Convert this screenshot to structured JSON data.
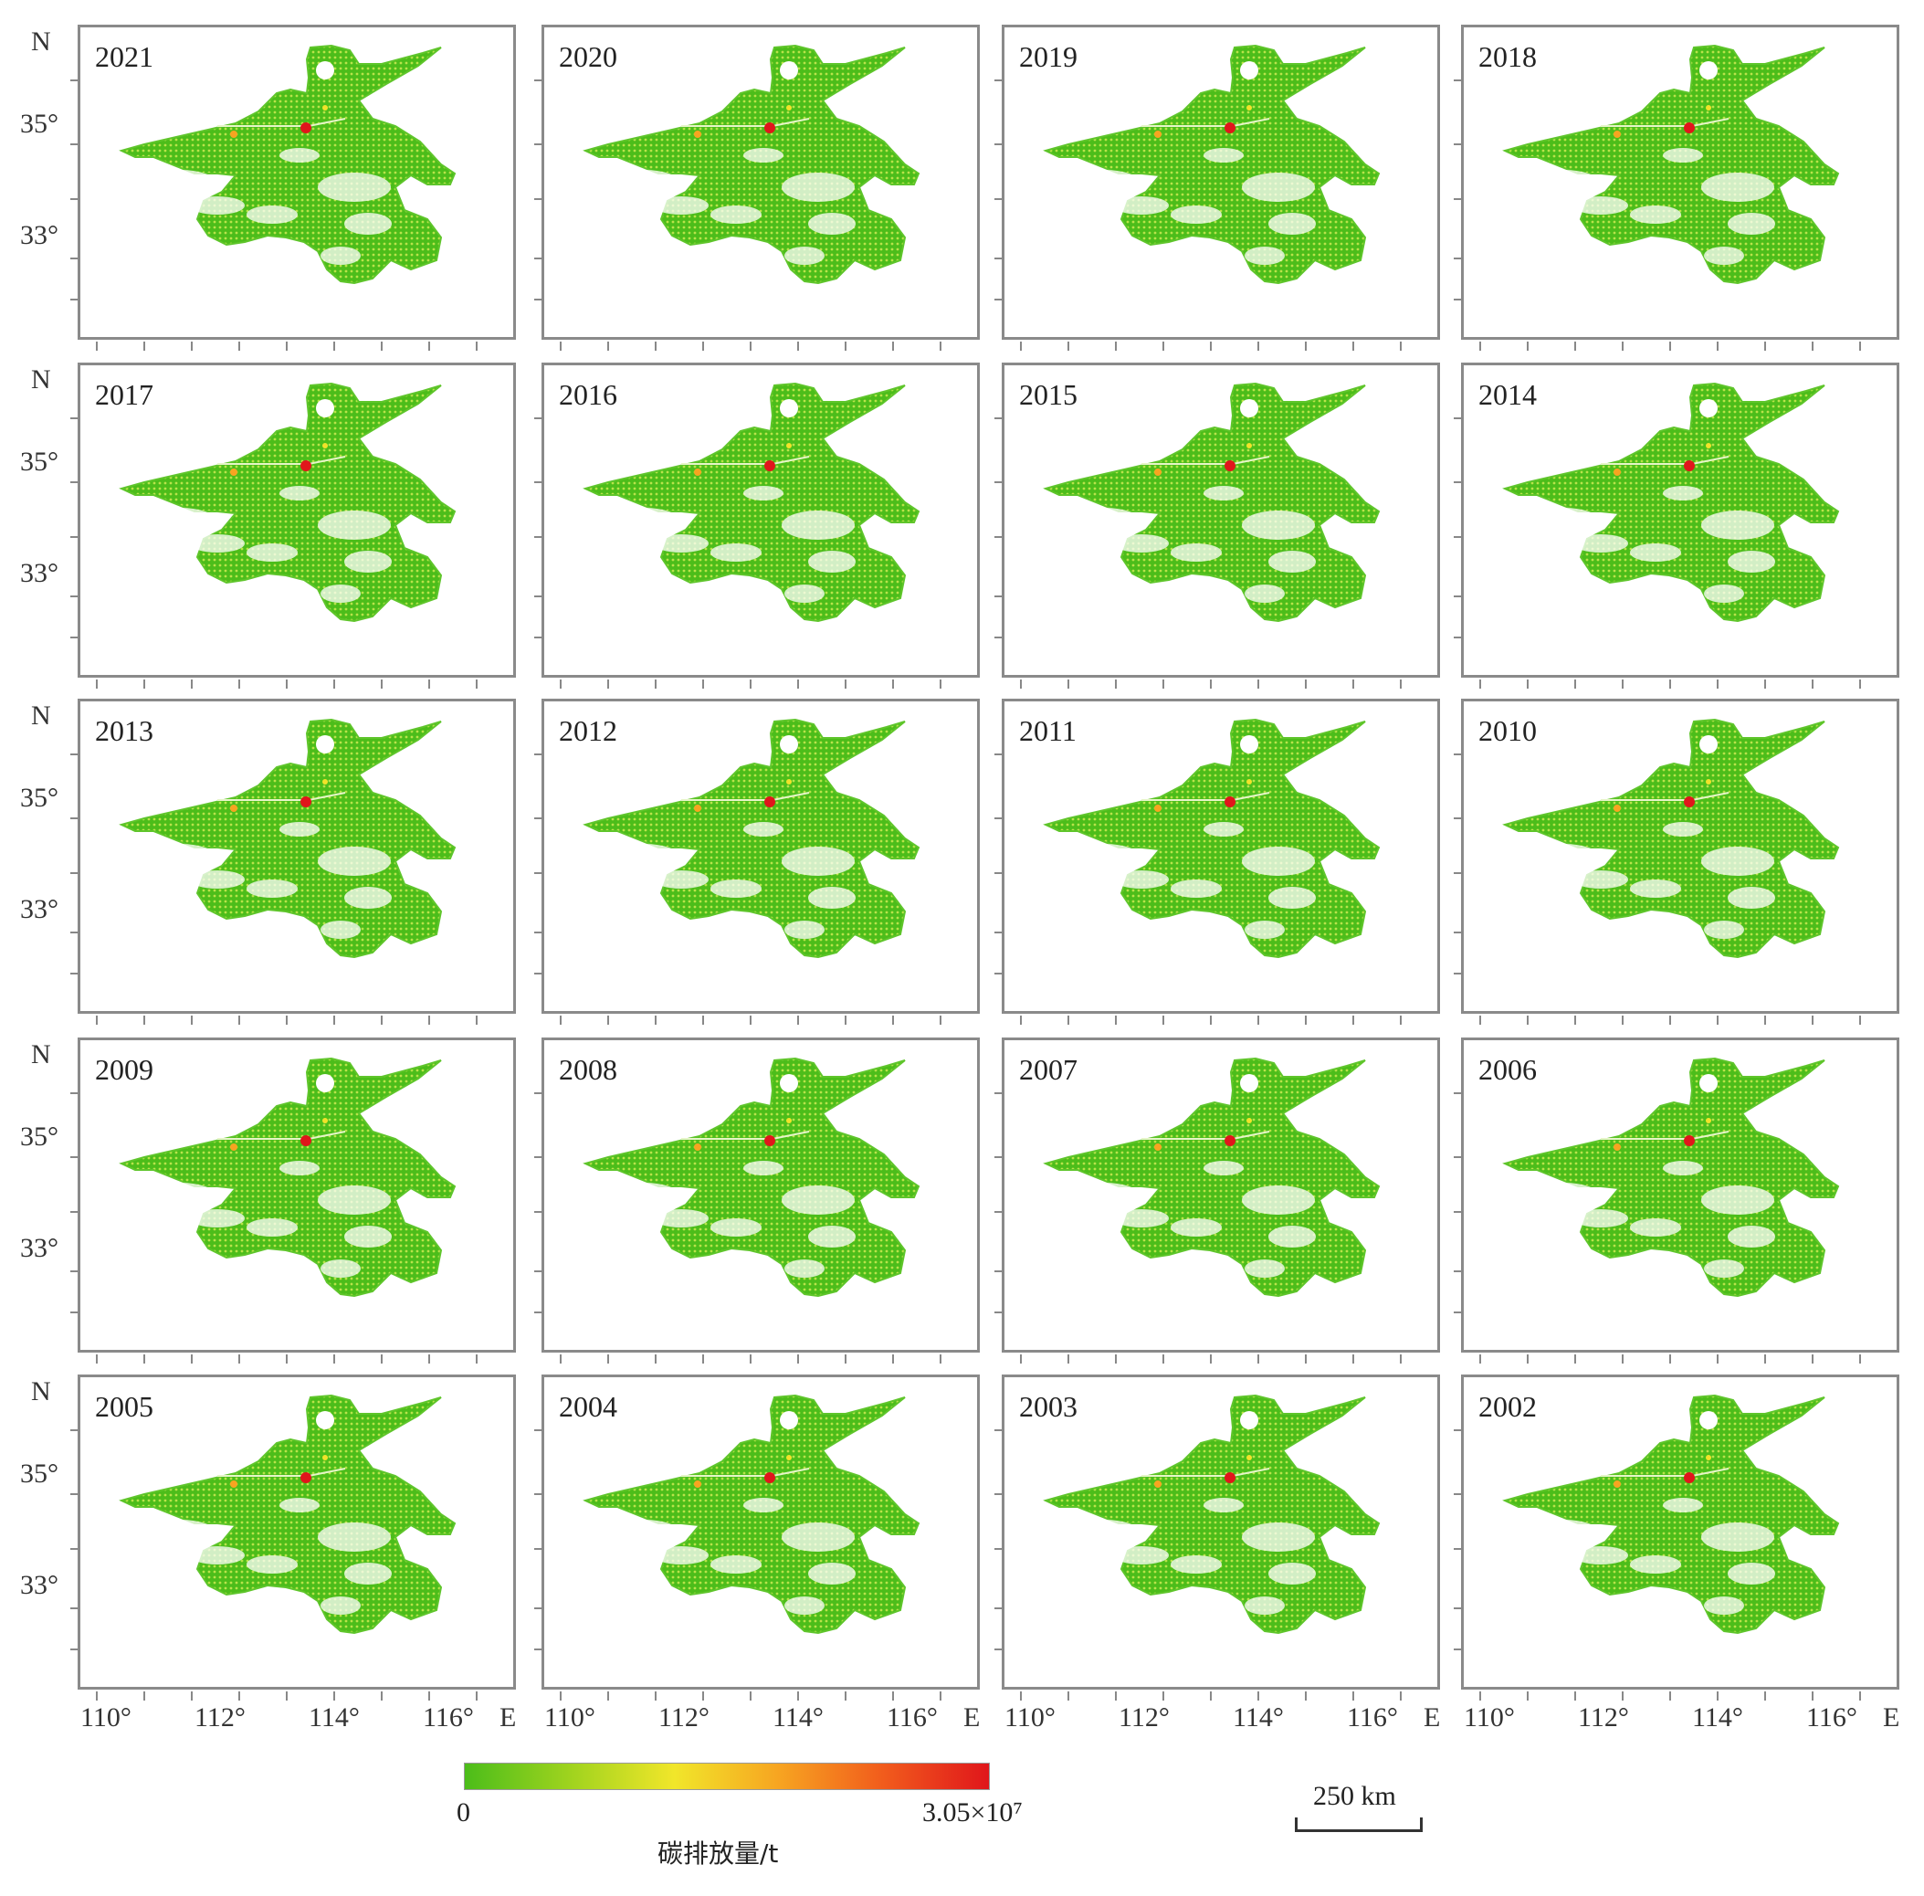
{
  "map": {
    "panels": [
      {
        "year": "2021"
      },
      {
        "year": "2020"
      },
      {
        "year": "2019"
      },
      {
        "year": "2018"
      },
      {
        "year": "2017"
      },
      {
        "year": "2016"
      },
      {
        "year": "2015"
      },
      {
        "year": "2014"
      },
      {
        "year": "2013"
      },
      {
        "year": "2012"
      },
      {
        "year": "2011"
      },
      {
        "year": "2010"
      },
      {
        "year": "2009"
      },
      {
        "year": "2008"
      },
      {
        "year": "2007"
      },
      {
        "year": "2006"
      },
      {
        "year": "2005"
      },
      {
        "year": "2004"
      },
      {
        "year": "2003"
      },
      {
        "year": "2002"
      }
    ],
    "lat_axis": {
      "north_label": "N",
      "ticks": [
        "35°",
        "33°"
      ]
    },
    "lon_axis": {
      "east_label": "E",
      "ticks": [
        "110°",
        "112°",
        "114°",
        "116°"
      ]
    },
    "legend": {
      "title": "碳排放量/t",
      "min_label": "0",
      "max_label": "3.05×10⁷",
      "colors": [
        "#4cbd1a",
        "#9fd31e",
        "#f1e62a",
        "#f7a421",
        "#f15b1c",
        "#e0161b"
      ]
    },
    "scale_bar": {
      "label": "250 km"
    },
    "colors": {
      "low": "#4cbd1a",
      "mid": "#f2e22a",
      "high": "#e0161b",
      "frame": "#8a8a8a"
    }
  }
}
